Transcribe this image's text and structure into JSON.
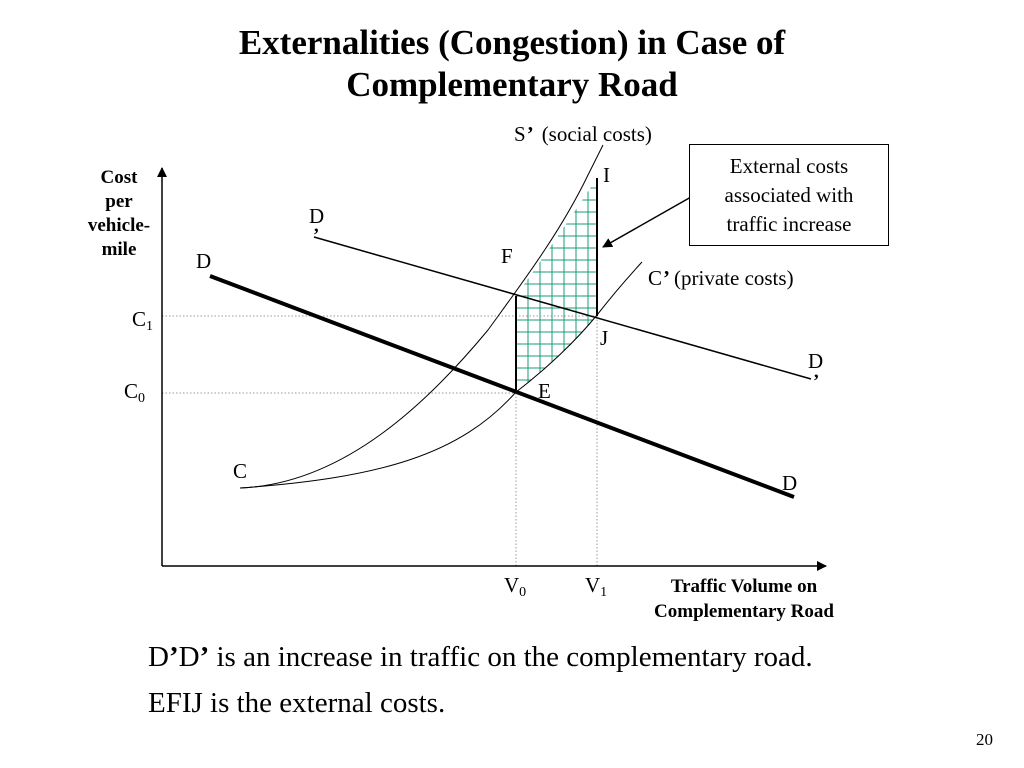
{
  "slide": {
    "title_line1": "Externalities (Congestion) in Case of",
    "title_line2": "Complementary Road",
    "page_number": "20"
  },
  "axes": {
    "y_label_lines": [
      "Cost",
      "per",
      "vehicle-",
      "mile"
    ],
    "x_label_line1": "Traffic Volume on",
    "x_label_line2": "Complementary Road"
  },
  "ticks": {
    "c1": {
      "main": "C",
      "sub": "1"
    },
    "c0": {
      "main": "C",
      "sub": "0"
    },
    "v0": {
      "main": "V",
      "sub": "0"
    },
    "v1": {
      "main": "V",
      "sub": "1"
    }
  },
  "curves": {
    "social": {
      "symbol": "S",
      "mark": "’",
      "label": "(social costs)"
    },
    "private": {
      "symbol": "C",
      "mark": "’",
      "label": "(private costs)"
    },
    "base_cost": "C"
  },
  "demand": {
    "original_left": "D",
    "original_right": "D",
    "shifted_left": {
      "symbol": "D",
      "mark": "’"
    },
    "shifted_right": {
      "symbol": "D",
      "mark": "’"
    }
  },
  "points": {
    "i": "I",
    "f": "F",
    "j": "J",
    "e": "E"
  },
  "callout": {
    "line1": "External costs",
    "line2": "associated with",
    "line3": "traffic increase"
  },
  "captions": {
    "line1_p1": "D",
    "line1_m1": "’",
    "line1_p2": "D",
    "line1_m2": "’",
    "line1_rest": " is an increase in traffic on the complementary road.",
    "line2": "EFIJ is the external costs."
  },
  "colors": {
    "hatch": "#1a9b7a",
    "lines": "#000000",
    "guide": "#999999"
  }
}
